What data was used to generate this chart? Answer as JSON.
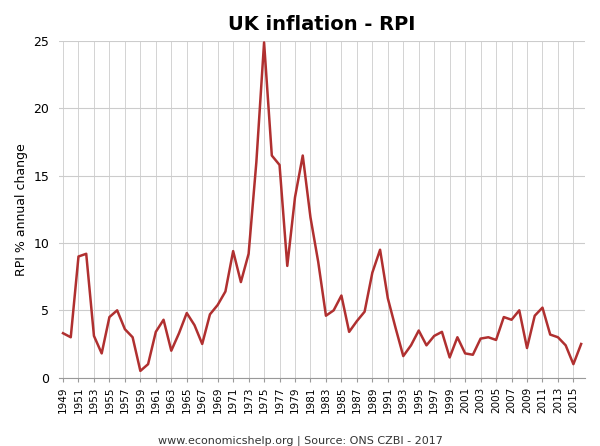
{
  "title": "UK inflation - RPI",
  "ylabel": "RPI % annual change",
  "footer": "www.economicshelp.org | Source: ONS CZBI - 2017",
  "line_color": "#B03030",
  "bg_color": "#ffffff",
  "grid_color": "#cccccc",
  "years": [
    1949,
    1950,
    1951,
    1952,
    1953,
    1954,
    1955,
    1956,
    1957,
    1958,
    1959,
    1960,
    1961,
    1962,
    1963,
    1964,
    1965,
    1966,
    1967,
    1968,
    1969,
    1970,
    1971,
    1972,
    1973,
    1974,
    1975,
    1976,
    1977,
    1978,
    1979,
    1980,
    1981,
    1982,
    1983,
    1984,
    1985,
    1986,
    1987,
    1988,
    1989,
    1990,
    1991,
    1992,
    1993,
    1994,
    1995,
    1996,
    1997,
    1998,
    1999,
    2000,
    2001,
    2002,
    2003,
    2004,
    2005,
    2006,
    2007,
    2008,
    2009,
    2010,
    2011,
    2012,
    2013,
    2014,
    2015,
    2016
  ],
  "values": [
    3.3,
    3.0,
    9.0,
    9.2,
    3.1,
    1.8,
    4.5,
    5.0,
    3.6,
    3.0,
    0.5,
    1.0,
    3.4,
    4.3,
    2.0,
    3.3,
    4.8,
    3.9,
    2.5,
    4.7,
    5.4,
    6.4,
    9.4,
    7.1,
    9.2,
    16.0,
    24.9,
    16.5,
    15.8,
    8.3,
    13.4,
    16.5,
    11.9,
    8.6,
    4.6,
    5.0,
    6.1,
    3.4,
    4.2,
    4.9,
    7.8,
    9.5,
    5.9,
    3.7,
    1.6,
    2.4,
    3.5,
    2.4,
    3.1,
    3.4,
    1.5,
    3.0,
    1.8,
    1.7,
    2.9,
    3.0,
    2.8,
    4.5,
    4.3,
    5.0,
    2.2,
    4.6,
    5.2,
    3.2,
    3.0,
    2.4,
    1.0,
    2.5
  ]
}
